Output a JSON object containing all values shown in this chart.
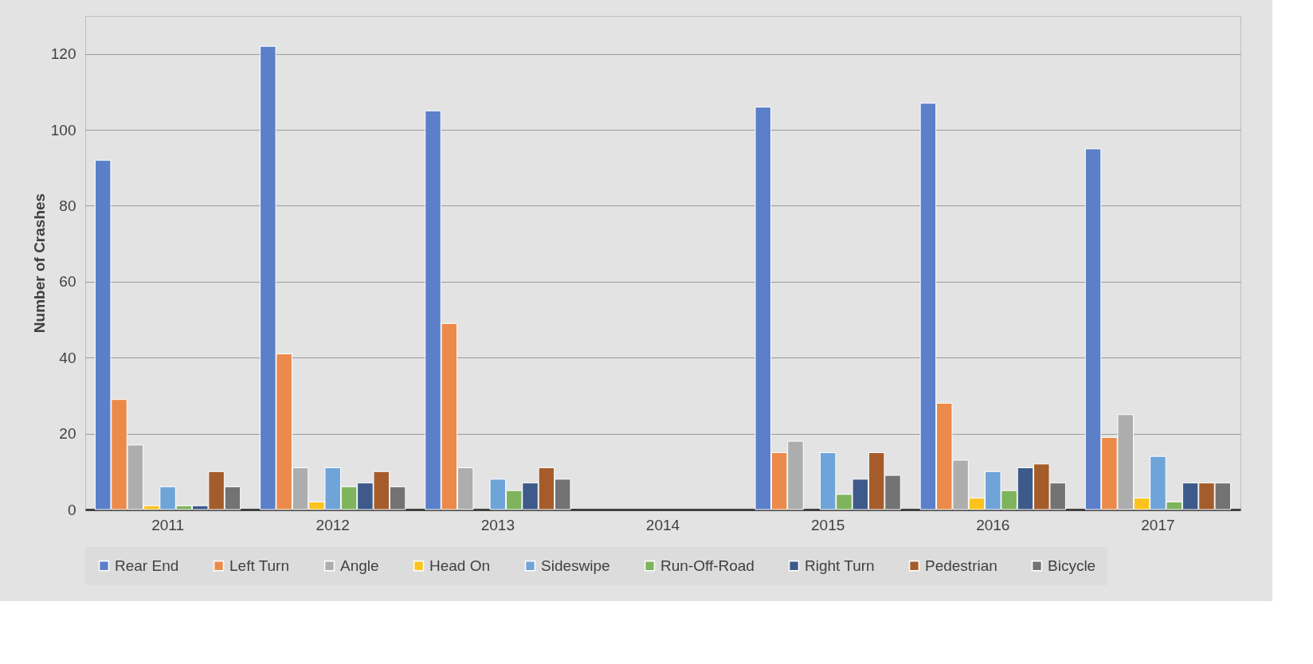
{
  "chart_data": {
    "type": "bar",
    "ylabel": "Number of Crashes",
    "categories": [
      "2011",
      "2012",
      "2013",
      "2014",
      "2015",
      "2016",
      "2017"
    ],
    "series": [
      {
        "name": "Rear End",
        "color": "#5b80c9",
        "values": [
          92,
          122,
          105,
          null,
          106,
          107,
          95
        ]
      },
      {
        "name": "Left Turn",
        "color": "#eb8a4b",
        "values": [
          29,
          41,
          49,
          null,
          15,
          28,
          19
        ]
      },
      {
        "name": "Angle",
        "color": "#adadad",
        "values": [
          17,
          11,
          11,
          null,
          18,
          13,
          25
        ]
      },
      {
        "name": "Head On",
        "color": "#fbc31c",
        "values": [
          1,
          2,
          null,
          null,
          null,
          3,
          3
        ]
      },
      {
        "name": "Sideswipe",
        "color": "#6fa4d8",
        "values": [
          6,
          11,
          8,
          null,
          15,
          10,
          14
        ]
      },
      {
        "name": "Run-Off-Road",
        "color": "#7fb35c",
        "values": [
          1,
          6,
          5,
          null,
          4,
          5,
          2
        ]
      },
      {
        "name": "Right Turn",
        "color": "#3d5a8a",
        "values": [
          1,
          7,
          7,
          null,
          8,
          11,
          7
        ]
      },
      {
        "name": "Pedestrian",
        "color": "#a55c2b",
        "values": [
          10,
          10,
          11,
          null,
          15,
          12,
          7
        ]
      },
      {
        "name": "Bicycle",
        "color": "#737373",
        "values": [
          6,
          6,
          8,
          null,
          9,
          7,
          7
        ]
      }
    ],
    "ylim": [
      0,
      130
    ],
    "yticks": [
      0,
      20,
      40,
      60,
      80,
      100,
      120
    ],
    "grid": "y",
    "legend": "bottom"
  }
}
